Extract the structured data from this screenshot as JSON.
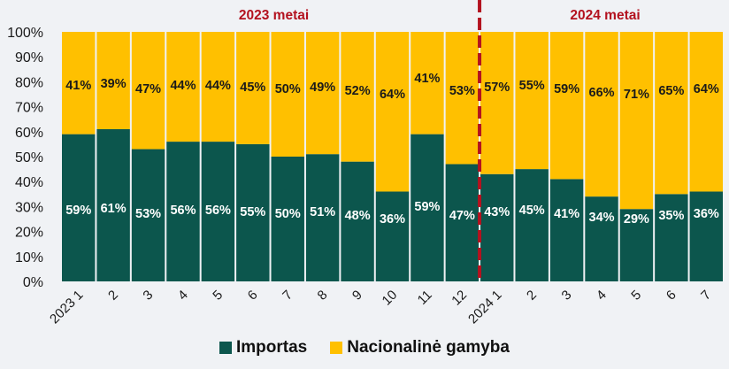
{
  "chart_data": {
    "type": "bar",
    "stacked": true,
    "percent_stacked": true,
    "title": "",
    "xlabel": "",
    "ylabel": "",
    "ylim": [
      0,
      100
    ],
    "yticks": [
      "0%",
      "10%",
      "20%",
      "30%",
      "40%",
      "50%",
      "60%",
      "70%",
      "80%",
      "90%",
      "100%"
    ],
    "categories": [
      "2023 1",
      "2",
      "3",
      "4",
      "5",
      "6",
      "7",
      "8",
      "9",
      "10",
      "11",
      "12",
      "2024 1",
      "2",
      "3",
      "4",
      "5",
      "6",
      "7"
    ],
    "series": [
      {
        "name": "Importas",
        "color": "#0c564d",
        "label_color": "#ffffff",
        "values": [
          59,
          61,
          53,
          56,
          56,
          55,
          50,
          51,
          48,
          36,
          59,
          47,
          43,
          45,
          41,
          34,
          29,
          35,
          36
        ]
      },
      {
        "name": "Nacionalinė gamyba",
        "color": "#ffc000",
        "label_color": "#1a1a1a",
        "values": [
          41,
          39,
          47,
          44,
          44,
          45,
          50,
          49,
          52,
          64,
          41,
          53,
          57,
          55,
          59,
          66,
          71,
          65,
          64
        ]
      }
    ],
    "annotations": [
      {
        "text": "2023 metai",
        "span": "2023 1 – 12",
        "color": "#b3121f"
      },
      {
        "text": "2024 metai",
        "span": "2024 1 – 7",
        "color": "#b3121f"
      },
      {
        "type": "dashed-vertical-line",
        "between": [
          "12",
          "2024 1"
        ],
        "color": "#b3121f"
      }
    ],
    "grid": false,
    "legend_position": "bottom"
  },
  "legend": {
    "items": [
      {
        "label": "Importas",
        "color": "#0c564d"
      },
      {
        "label": "Nacionalinė gamyba",
        "color": "#ffc000"
      }
    ]
  }
}
